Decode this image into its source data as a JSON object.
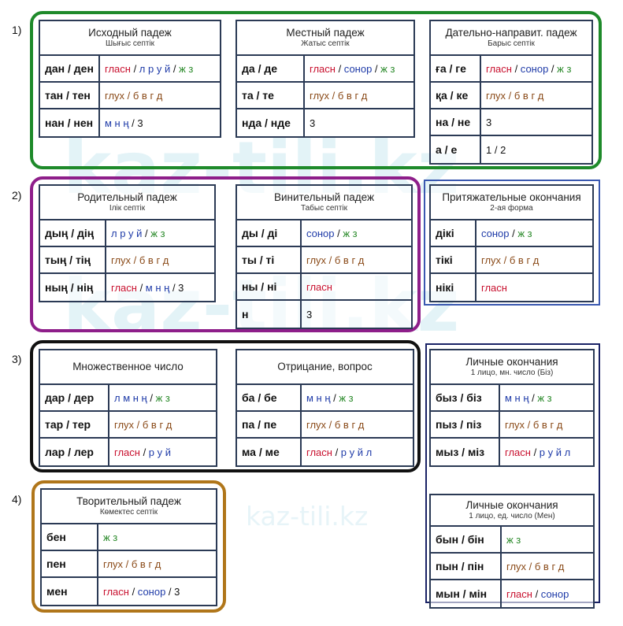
{
  "watermark": "kaz-tili.kz",
  "colors": {
    "red": "#c8102e",
    "blue": "#1f3ba8",
    "green": "#2a8a2a",
    "brown": "#8a4a18"
  },
  "groups": [
    {
      "num": "1)",
      "color": "#1e8a2a"
    },
    {
      "num": "2)",
      "color": "#8e1e8a"
    },
    {
      "num": "3)",
      "color": "#111111"
    },
    {
      "num": "4)",
      "color": "#b0761a"
    }
  ],
  "tables": [
    {
      "id": "iskhodnyi",
      "title": "Исходный падеж",
      "sub": "Шығыс септік",
      "rows": [
        {
          "suffix": "дан / ден",
          "rule": [
            [
              "гласн",
              "red"
            ],
            [
              " / ",
              "blk"
            ],
            [
              "л р у й",
              "blue"
            ],
            [
              " / ",
              "blk"
            ],
            [
              "ж з",
              "green"
            ]
          ]
        },
        {
          "suffix": "тан / тен",
          "rule": [
            [
              "глух / б в г д",
              "brown"
            ]
          ]
        },
        {
          "suffix": "нан / нен",
          "rule": [
            [
              "м н ң",
              "blue"
            ],
            [
              " / 3",
              "blk"
            ]
          ]
        }
      ]
    },
    {
      "id": "mestnyi",
      "title": "Местный падеж",
      "sub": "Жатыс септік",
      "rows": [
        {
          "suffix": "да / де",
          "rule": [
            [
              "гласн",
              "red"
            ],
            [
              " / ",
              "blk"
            ],
            [
              "сонор",
              "blue"
            ],
            [
              " / ",
              "blk"
            ],
            [
              "ж з",
              "green"
            ]
          ]
        },
        {
          "suffix": "та / те",
          "rule": [
            [
              "глух / б в г д",
              "brown"
            ]
          ]
        },
        {
          "suffix": "нда / нде",
          "rule": [
            [
              "3",
              "blk"
            ]
          ]
        }
      ]
    },
    {
      "id": "datelnyi",
      "title": "Дательно-направит. падеж",
      "sub": "Барыс септік",
      "rows": [
        {
          "suffix": "ға / ге",
          "rule": [
            [
              "гласн",
              "red"
            ],
            [
              " / ",
              "blk"
            ],
            [
              "сонор",
              "blue"
            ],
            [
              " / ",
              "blk"
            ],
            [
              "ж з",
              "green"
            ]
          ]
        },
        {
          "suffix": "қа / ке",
          "rule": [
            [
              "глух / б в г д",
              "brown"
            ]
          ]
        },
        {
          "suffix": "на / не",
          "rule": [
            [
              "3",
              "blk"
            ]
          ]
        },
        {
          "suffix": "а / е",
          "rule": [
            [
              "1 / 2",
              "blk"
            ]
          ]
        }
      ]
    },
    {
      "id": "roditelnyi",
      "title": "Родительный падеж",
      "sub": "Ілік септік",
      "rows": [
        {
          "suffix": "дың / дің",
          "rule": [
            [
              "л р у й",
              "blue"
            ],
            [
              " / ",
              "blk"
            ],
            [
              "ж з",
              "green"
            ]
          ]
        },
        {
          "suffix": "тың / тің",
          "rule": [
            [
              "глух / б в г д",
              "brown"
            ]
          ]
        },
        {
          "suffix": "ның / нің",
          "rule": [
            [
              "гласн",
              "red"
            ],
            [
              " / ",
              "blk"
            ],
            [
              "м н ң",
              "blue"
            ],
            [
              " / 3",
              "blk"
            ]
          ]
        }
      ]
    },
    {
      "id": "vinitelnyi",
      "title": "Винительный падеж",
      "sub": "Табыс септік",
      "rows": [
        {
          "suffix": "ды / ді",
          "rule": [
            [
              "сонор",
              "blue"
            ],
            [
              " / ",
              "blk"
            ],
            [
              "ж з",
              "green"
            ]
          ]
        },
        {
          "suffix": "ты / ті",
          "rule": [
            [
              "глух / б в г д",
              "brown"
            ]
          ]
        },
        {
          "suffix": "ны / ні",
          "rule": [
            [
              "гласн",
              "red"
            ]
          ]
        },
        {
          "suffix": "н",
          "rule": [
            [
              "3",
              "blk"
            ]
          ]
        }
      ]
    },
    {
      "id": "prityazhatelnye",
      "title": "Притяжательные окончания",
      "sub": "2-ая форма",
      "rows": [
        {
          "suffix": "дікі",
          "rule": [
            [
              "сонор",
              "blue"
            ],
            [
              " / ",
              "blk"
            ],
            [
              "ж з",
              "green"
            ]
          ]
        },
        {
          "suffix": "тікі",
          "rule": [
            [
              "глух / б в г д",
              "brown"
            ]
          ]
        },
        {
          "suffix": "нікі",
          "rule": [
            [
              "гласн",
              "red"
            ]
          ]
        }
      ]
    },
    {
      "id": "mnozhestvennoe",
      "title": "Множественное число",
      "sub": "",
      "rows": [
        {
          "suffix": "дар / дер",
          "rule": [
            [
              "л м н ң",
              "blue"
            ],
            [
              " / ",
              "blk"
            ],
            [
              "ж з",
              "green"
            ]
          ]
        },
        {
          "suffix": "тар / тер",
          "rule": [
            [
              "глух / б в г д",
              "brown"
            ]
          ]
        },
        {
          "suffix": "лар / лер",
          "rule": [
            [
              "гласн",
              "red"
            ],
            [
              " / ",
              "blk"
            ],
            [
              "р у й",
              "blue"
            ]
          ]
        }
      ]
    },
    {
      "id": "otricanie",
      "title": "Отрицание, вопрос",
      "sub": "",
      "rows": [
        {
          "suffix": "ба / бе",
          "rule": [
            [
              "м н ң",
              "blue"
            ],
            [
              " / ",
              "blk"
            ],
            [
              "ж з",
              "green"
            ]
          ]
        },
        {
          "suffix": "па / пе",
          "rule": [
            [
              "глух / б в г д",
              "brown"
            ]
          ]
        },
        {
          "suffix": "ма / ме",
          "rule": [
            [
              "гласн",
              "red"
            ],
            [
              " / ",
              "blk"
            ],
            [
              "р у й л",
              "blue"
            ]
          ]
        }
      ]
    },
    {
      "id": "lichnye-mn",
      "title": "Личные окончания",
      "sub": "1 лицо, мн. число (Біз)",
      "rows": [
        {
          "suffix": "быз / біз",
          "rule": [
            [
              "м н ң",
              "blue"
            ],
            [
              " / ",
              "blk"
            ],
            [
              "ж з",
              "green"
            ]
          ]
        },
        {
          "suffix": "пыз / піз",
          "rule": [
            [
              "глух / б в г д",
              "brown"
            ]
          ]
        },
        {
          "suffix": "мыз / міз",
          "rule": [
            [
              "гласн",
              "red"
            ],
            [
              " / ",
              "blk"
            ],
            [
              "р у й л",
              "blue"
            ]
          ]
        }
      ]
    },
    {
      "id": "tvoritelnyi",
      "title": "Творительный падеж",
      "sub": "Көмектес септік",
      "rows": [
        {
          "suffix": "бен",
          "rule": [
            [
              "ж з",
              "green"
            ]
          ]
        },
        {
          "suffix": "пен",
          "rule": [
            [
              "глух / б в г д",
              "brown"
            ]
          ]
        },
        {
          "suffix": "мен",
          "rule": [
            [
              "гласн",
              "red"
            ],
            [
              " / ",
              "blk"
            ],
            [
              "сонор",
              "blue"
            ],
            [
              " / 3",
              "blk"
            ]
          ]
        }
      ]
    },
    {
      "id": "lichnye-ed",
      "title": "Личные окончания",
      "sub": "1 лицо, ед. число (Мен)",
      "rows": [
        {
          "suffix": "бын / бін",
          "rule": [
            [
              "ж з",
              "green"
            ]
          ]
        },
        {
          "suffix": "пын / пін",
          "rule": [
            [
              "глух / б в г д",
              "brown"
            ]
          ]
        },
        {
          "suffix": "мын / мін",
          "rule": [
            [
              "гласн",
              "red"
            ],
            [
              " / ",
              "blk"
            ],
            [
              "сонор",
              "blue"
            ]
          ]
        }
      ]
    }
  ]
}
